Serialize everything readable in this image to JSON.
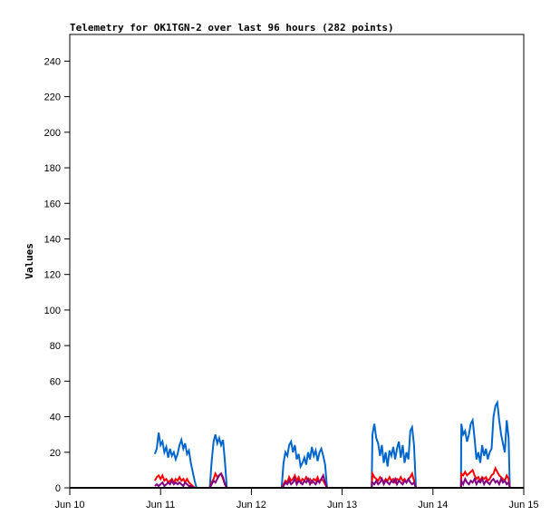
{
  "chart_data": {
    "type": "line",
    "title": "Telemetry for OK1TGN-2 over last 96 hours (282 points)",
    "xlabel": "",
    "ylabel": "Values",
    "x_unit": "hours since Jun 10 00:00",
    "xlim": [
      0,
      120
    ],
    "ylim": [
      0,
      255
    ],
    "yticks": [
      0,
      20,
      40,
      60,
      80,
      100,
      120,
      140,
      160,
      180,
      200,
      220,
      240
    ],
    "xticks": [
      {
        "x": 0,
        "label": "Jun 10"
      },
      {
        "x": 24,
        "label": "Jun 11"
      },
      {
        "x": 48,
        "label": "Jun 12"
      },
      {
        "x": 72,
        "label": "Jun 13"
      },
      {
        "x": 96,
        "label": "Jun 14"
      },
      {
        "x": 120,
        "label": "Jun 15"
      }
    ],
    "grid": false,
    "series": [
      {
        "name": "blue",
        "color": "#0066cc",
        "points": [
          [
            22.5,
            19
          ],
          [
            23,
            22
          ],
          [
            23.5,
            31
          ],
          [
            24,
            24
          ],
          [
            24.5,
            26
          ],
          [
            25,
            20
          ],
          [
            25.5,
            23
          ],
          [
            26,
            17
          ],
          [
            26.5,
            22
          ],
          [
            27,
            18
          ],
          [
            27.5,
            20
          ],
          [
            28,
            16
          ],
          [
            28.5,
            19
          ],
          [
            29,
            24
          ],
          [
            29.5,
            27
          ],
          [
            30,
            22
          ],
          [
            30.5,
            25
          ],
          [
            31,
            19
          ],
          [
            31.5,
            21
          ],
          [
            32,
            14
          ],
          [
            32.5,
            9
          ],
          [
            33,
            4
          ],
          [
            33.5,
            0
          ],
          [
            37,
            0
          ],
          [
            37.5,
            15
          ],
          [
            38,
            26
          ],
          [
            38.5,
            30
          ],
          [
            39,
            25
          ],
          [
            39.5,
            28
          ],
          [
            40,
            24
          ],
          [
            40.5,
            27
          ],
          [
            41,
            15
          ],
          [
            41.5,
            0
          ],
          [
            56,
            0
          ],
          [
            56.5,
            14
          ],
          [
            57,
            20
          ],
          [
            57.5,
            18
          ],
          [
            58,
            24
          ],
          [
            58.5,
            26
          ],
          [
            59,
            20
          ],
          [
            59.5,
            24
          ],
          [
            60,
            16
          ],
          [
            60.5,
            19
          ],
          [
            61,
            12
          ],
          [
            61.5,
            14
          ],
          [
            62,
            17
          ],
          [
            62.5,
            13
          ],
          [
            63,
            20
          ],
          [
            63.5,
            16
          ],
          [
            64,
            23
          ],
          [
            64.5,
            18
          ],
          [
            65,
            21
          ],
          [
            65.5,
            15
          ],
          [
            66,
            20
          ],
          [
            66.5,
            22
          ],
          [
            67,
            18
          ],
          [
            67.5,
            13
          ],
          [
            68,
            0
          ],
          [
            79.8,
            0
          ],
          [
            80,
            30
          ],
          [
            80.5,
            36
          ],
          [
            81,
            28
          ],
          [
            81.5,
            25
          ],
          [
            82,
            18
          ],
          [
            82.5,
            24
          ],
          [
            83,
            14
          ],
          [
            83.5,
            20
          ],
          [
            84,
            12
          ],
          [
            84.5,
            21
          ],
          [
            85,
            18
          ],
          [
            85.5,
            23
          ],
          [
            86,
            16
          ],
          [
            86.5,
            22
          ],
          [
            87,
            26
          ],
          [
            87.5,
            17
          ],
          [
            88,
            24
          ],
          [
            88.5,
            14
          ],
          [
            89,
            20
          ],
          [
            89.5,
            16
          ],
          [
            90,
            32
          ],
          [
            90.5,
            34
          ],
          [
            91,
            24
          ],
          [
            91.5,
            0
          ],
          [
            103.4,
            0
          ],
          [
            103.5,
            36
          ],
          [
            104,
            30
          ],
          [
            104.5,
            32
          ],
          [
            105,
            26
          ],
          [
            105.5,
            30
          ],
          [
            106,
            36
          ],
          [
            106.5,
            38
          ],
          [
            107,
            28
          ],
          [
            107.5,
            16
          ],
          [
            108,
            20
          ],
          [
            108.5,
            14
          ],
          [
            109,
            24
          ],
          [
            109.5,
            18
          ],
          [
            110,
            22
          ],
          [
            110.5,
            16
          ],
          [
            111,
            20
          ],
          [
            111.5,
            22
          ],
          [
            112,
            40
          ],
          [
            112.5,
            46
          ],
          [
            113,
            48
          ],
          [
            113.5,
            38
          ],
          [
            114,
            30
          ],
          [
            114.5,
            25
          ],
          [
            115,
            20
          ],
          [
            115.5,
            38
          ],
          [
            116,
            28
          ],
          [
            116.3,
            0
          ]
        ]
      },
      {
        "name": "red",
        "color": "#ff0000",
        "points": [
          [
            22.5,
            4
          ],
          [
            23,
            6
          ],
          [
            23.5,
            7
          ],
          [
            24,
            5
          ],
          [
            24.5,
            7
          ],
          [
            25,
            4
          ],
          [
            25.5,
            5
          ],
          [
            26,
            3
          ],
          [
            26.5,
            4
          ],
          [
            27,
            5
          ],
          [
            27.5,
            3
          ],
          [
            28,
            5
          ],
          [
            28.5,
            4
          ],
          [
            29,
            6
          ],
          [
            29.5,
            4
          ],
          [
            30,
            5
          ],
          [
            30.5,
            3
          ],
          [
            31,
            5
          ],
          [
            31.5,
            3
          ],
          [
            32,
            2
          ],
          [
            32.5,
            1
          ],
          [
            33,
            0
          ],
          [
            37,
            0
          ],
          [
            37.5,
            3
          ],
          [
            38,
            5
          ],
          [
            38.5,
            8
          ],
          [
            39,
            6
          ],
          [
            39.5,
            7
          ],
          [
            40,
            8
          ],
          [
            40.5,
            5
          ],
          [
            41,
            2
          ],
          [
            41.5,
            0
          ],
          [
            56,
            0
          ],
          [
            56.5,
            2
          ],
          [
            57,
            4
          ],
          [
            57.5,
            3
          ],
          [
            58,
            6
          ],
          [
            58.5,
            4
          ],
          [
            59,
            5
          ],
          [
            59.5,
            7
          ],
          [
            60,
            4
          ],
          [
            60.5,
            6
          ],
          [
            61,
            3
          ],
          [
            61.5,
            5
          ],
          [
            62,
            4
          ],
          [
            62.5,
            6
          ],
          [
            63,
            4
          ],
          [
            63.5,
            5
          ],
          [
            64,
            3
          ],
          [
            64.5,
            5
          ],
          [
            65,
            4
          ],
          [
            65.5,
            6
          ],
          [
            66,
            3
          ],
          [
            66.5,
            5
          ],
          [
            67,
            4
          ],
          [
            67.5,
            2
          ],
          [
            68,
            0
          ],
          [
            79.8,
            0
          ],
          [
            80,
            8
          ],
          [
            80.5,
            6
          ],
          [
            81,
            5
          ],
          [
            81.5,
            4
          ],
          [
            82,
            6
          ],
          [
            82.5,
            5
          ],
          [
            83,
            3
          ],
          [
            83.5,
            5
          ],
          [
            84,
            4
          ],
          [
            84.5,
            6
          ],
          [
            85,
            4
          ],
          [
            85.5,
            5
          ],
          [
            86,
            3
          ],
          [
            86.5,
            5
          ],
          [
            87,
            4
          ],
          [
            87.5,
            6
          ],
          [
            88,
            4
          ],
          [
            88.5,
            5
          ],
          [
            89,
            3
          ],
          [
            89.5,
            5
          ],
          [
            90,
            6
          ],
          [
            90.5,
            8
          ],
          [
            91,
            4
          ],
          [
            91.5,
            0
          ],
          [
            103.4,
            0
          ],
          [
            103.5,
            8
          ],
          [
            104,
            7
          ],
          [
            104.5,
            9
          ],
          [
            105,
            7
          ],
          [
            105.5,
            8
          ],
          [
            106,
            9
          ],
          [
            106.5,
            10
          ],
          [
            107,
            7
          ],
          [
            107.5,
            5
          ],
          [
            108,
            6
          ],
          [
            108.5,
            4
          ],
          [
            109,
            6
          ],
          [
            109.5,
            5
          ],
          [
            110,
            6
          ],
          [
            110.5,
            4
          ],
          [
            111,
            5
          ],
          [
            111.5,
            7
          ],
          [
            112,
            8
          ],
          [
            112.5,
            11
          ],
          [
            113,
            9
          ],
          [
            113.5,
            7
          ],
          [
            114,
            6
          ],
          [
            114.5,
            5
          ],
          [
            115,
            4
          ],
          [
            115.5,
            7
          ],
          [
            116,
            5
          ],
          [
            116.3,
            0
          ]
        ]
      },
      {
        "name": "purple",
        "color": "#800080",
        "points": [
          [
            22.5,
            1
          ],
          [
            23,
            2
          ],
          [
            23.5,
            1
          ],
          [
            24,
            2
          ],
          [
            24.5,
            3
          ],
          [
            25,
            1
          ],
          [
            25.5,
            2
          ],
          [
            26,
            3
          ],
          [
            26.5,
            2
          ],
          [
            27,
            4
          ],
          [
            27.5,
            2
          ],
          [
            28,
            3
          ],
          [
            28.5,
            2
          ],
          [
            29,
            3
          ],
          [
            29.5,
            2
          ],
          [
            30,
            1
          ],
          [
            30.5,
            3
          ],
          [
            31,
            2
          ],
          [
            31.5,
            1
          ],
          [
            32,
            1
          ],
          [
            32.5,
            0
          ],
          [
            37,
            0
          ],
          [
            37.5,
            2
          ],
          [
            38,
            4
          ],
          [
            38.5,
            3
          ],
          [
            39,
            5
          ],
          [
            39.5,
            7
          ],
          [
            40,
            8
          ],
          [
            40.5,
            6
          ],
          [
            41,
            2
          ],
          [
            41.5,
            0
          ],
          [
            56,
            0
          ],
          [
            56.5,
            1
          ],
          [
            57,
            3
          ],
          [
            57.5,
            2
          ],
          [
            58,
            4
          ],
          [
            58.5,
            2
          ],
          [
            59,
            3
          ],
          [
            59.5,
            5
          ],
          [
            60,
            2
          ],
          [
            60.5,
            4
          ],
          [
            61,
            3
          ],
          [
            61.5,
            2
          ],
          [
            62,
            4
          ],
          [
            62.5,
            3
          ],
          [
            63,
            5
          ],
          [
            63.5,
            2
          ],
          [
            64,
            4
          ],
          [
            64.5,
            3
          ],
          [
            65,
            2
          ],
          [
            65.5,
            4
          ],
          [
            66,
            3
          ],
          [
            66.5,
            5
          ],
          [
            67,
            7
          ],
          [
            67.5,
            3
          ],
          [
            68,
            0
          ],
          [
            79.8,
            0
          ],
          [
            80,
            3
          ],
          [
            80.5,
            2
          ],
          [
            81,
            4
          ],
          [
            81.5,
            2
          ],
          [
            82,
            3
          ],
          [
            82.5,
            5
          ],
          [
            83,
            2
          ],
          [
            83.5,
            4
          ],
          [
            84,
            3
          ],
          [
            84.5,
            2
          ],
          [
            85,
            4
          ],
          [
            85.5,
            3
          ],
          [
            86,
            5
          ],
          [
            86.5,
            2
          ],
          [
            87,
            4
          ],
          [
            87.5,
            3
          ],
          [
            88,
            2
          ],
          [
            88.5,
            4
          ],
          [
            89,
            3
          ],
          [
            89.5,
            5
          ],
          [
            90,
            3
          ],
          [
            90.5,
            2
          ],
          [
            91,
            3
          ],
          [
            91.5,
            0
          ],
          [
            103.4,
            0
          ],
          [
            103.5,
            4
          ],
          [
            104,
            2
          ],
          [
            104.5,
            5
          ],
          [
            105,
            3
          ],
          [
            105.5,
            2
          ],
          [
            106,
            4
          ],
          [
            106.5,
            3
          ],
          [
            107,
            5
          ],
          [
            107.5,
            2
          ],
          [
            108,
            4
          ],
          [
            108.5,
            3
          ],
          [
            109,
            5
          ],
          [
            109.5,
            2
          ],
          [
            110,
            4
          ],
          [
            110.5,
            3
          ],
          [
            111,
            2
          ],
          [
            111.5,
            4
          ],
          [
            112,
            5
          ],
          [
            112.5,
            3
          ],
          [
            113,
            4
          ],
          [
            113.5,
            2
          ],
          [
            114,
            5
          ],
          [
            114.5,
            3
          ],
          [
            115,
            4
          ],
          [
            115.5,
            2
          ],
          [
            116,
            3
          ],
          [
            116.3,
            0
          ]
        ]
      }
    ]
  }
}
